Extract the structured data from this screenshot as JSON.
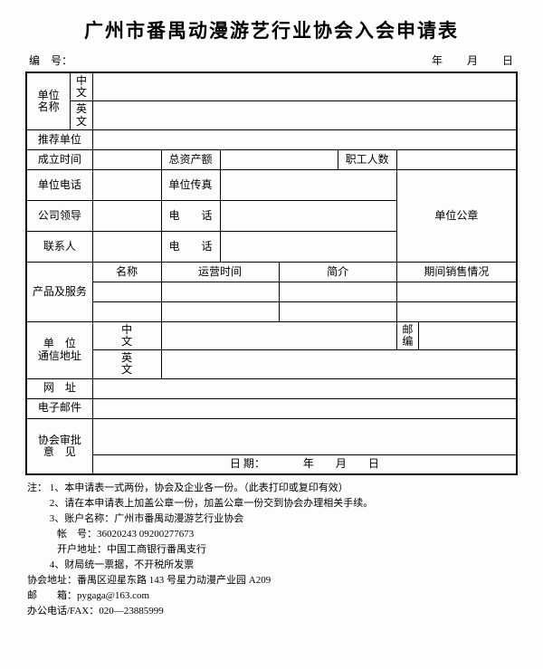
{
  "title": "广州市番禺动漫游艺行业协会入会申请表",
  "meta": {
    "serial_label": "编　号：",
    "date_label": "年　　月　　日"
  },
  "labels": {
    "unit_name": "单位\n名称",
    "cn": "中\n文",
    "en": "英\n文",
    "recommend": "推荐单位",
    "est_time": "成立时间",
    "total_assets": "总资产额",
    "employees": "职工人数",
    "unit_phone": "单位电话",
    "unit_fax": "单位传真",
    "unit_seal": "单位公章",
    "leader": "公司领导",
    "phone1": "电　　话",
    "contact": "联系人",
    "phone2": "电　　话",
    "product_service": "产品及服务",
    "ps_name": "名称",
    "ps_runtime": "运营时间",
    "ps_intro": "简介",
    "ps_sales": "期间销售情况",
    "unit_addr": "单　位\n通信地址",
    "postcode": "邮\n编",
    "website": "网　址",
    "email": "电子邮件",
    "approval": "协会审批\n意　见",
    "approval_date": "日 期：　　　　年　　月　　日"
  },
  "notes": {
    "n_header": "注：",
    "n1": "1、本申请表一式两份，协会及企业各一份。（此表打印或复印有效）",
    "n2": "2、请在本申请表上加盖公章一份，加盖公章一份交到协会办理相关手续。",
    "n3": "3、账户名称：广州市番禺动漫游艺行业协会",
    "n3a": "　　　帐　号：36020243 09200277673",
    "n3b": "　　　开户地址：中国工商银行番禺支行",
    "n4": "4、财局统一票据，不开税所发票",
    "addr": "协会地址：番禺区迎星东路 143 号星力动漫产业园 A209",
    "mail": "邮　　箱：pygaga@163.com",
    "phone": "办公电话/FAX：020—23885999"
  },
  "style": {
    "border_color": "#000000",
    "background": "#fdfdfb",
    "title_fontsize": 21,
    "body_fontsize": 12,
    "notes_fontsize": 11
  }
}
